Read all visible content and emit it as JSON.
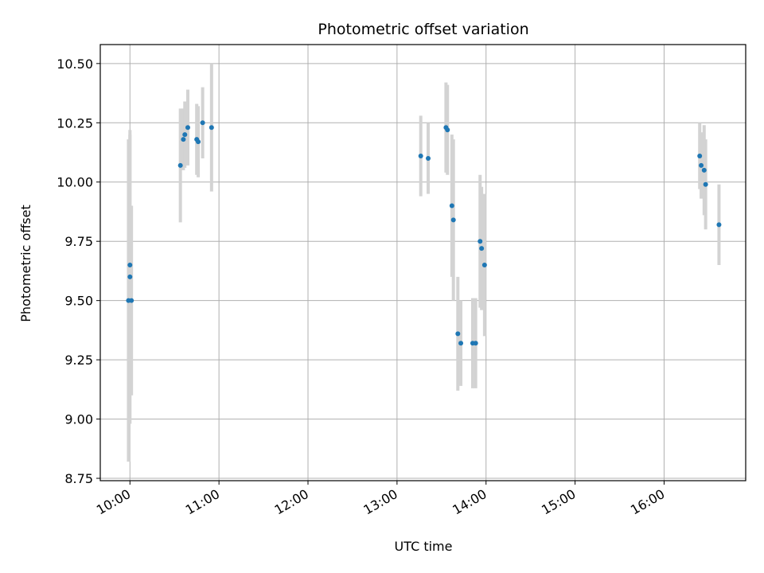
{
  "chart_data": {
    "type": "scatter",
    "title": "Photometric offset variation",
    "xlabel": "UTC time",
    "ylabel": "Photometric offset",
    "xlim": [
      "09:40",
      "16:55"
    ],
    "ylim": [
      8.74,
      10.58
    ],
    "x_ticks": [
      "10:00",
      "11:00",
      "12:00",
      "13:00",
      "14:00",
      "15:00",
      "16:00"
    ],
    "y_ticks": [
      "8.75",
      "9.00",
      "9.25",
      "9.50",
      "9.75",
      "10.00",
      "10.25",
      "10.50"
    ],
    "grid": true,
    "colors": {
      "point": "#1f77b4",
      "errorbar": "#d3d3d3",
      "grid": "#b0b0b0"
    },
    "points": [
      {
        "x": "09:59",
        "y": 9.5,
        "err": 0.68
      },
      {
        "x": "10:00",
        "y": 9.6,
        "err": 0.62
      },
      {
        "x": "10:00",
        "y": 9.65,
        "err": 0.55
      },
      {
        "x": "10:01",
        "y": 9.5,
        "err": 0.4
      },
      {
        "x": "10:34",
        "y": 10.07,
        "err": 0.24
      },
      {
        "x": "10:36",
        "y": 10.18,
        "err": 0.13
      },
      {
        "x": "10:37",
        "y": 10.2,
        "err": 0.14
      },
      {
        "x": "10:39",
        "y": 10.23,
        "err": 0.16
      },
      {
        "x": "10:45",
        "y": 10.18,
        "err": 0.15
      },
      {
        "x": "10:46",
        "y": 10.17,
        "err": 0.15
      },
      {
        "x": "10:49",
        "y": 10.25,
        "err": 0.15
      },
      {
        "x": "10:55",
        "y": 10.23,
        "err": 0.27
      },
      {
        "x": "13:16",
        "y": 10.11,
        "err": 0.17
      },
      {
        "x": "13:21",
        "y": 10.1,
        "err": 0.15
      },
      {
        "x": "13:33",
        "y": 10.23,
        "err": 0.19
      },
      {
        "x": "13:34",
        "y": 10.22,
        "err": 0.19
      },
      {
        "x": "13:37",
        "y": 9.9,
        "err": 0.3
      },
      {
        "x": "13:38",
        "y": 9.84,
        "err": 0.34
      },
      {
        "x": "13:41",
        "y": 9.36,
        "err": 0.24
      },
      {
        "x": "13:43",
        "y": 9.32,
        "err": 0.18
      },
      {
        "x": "13:51",
        "y": 9.32,
        "err": 0.19
      },
      {
        "x": "13:53",
        "y": 9.32,
        "err": 0.19
      },
      {
        "x": "13:56",
        "y": 9.75,
        "err": 0.28
      },
      {
        "x": "13:57",
        "y": 9.72,
        "err": 0.26
      },
      {
        "x": "13:59",
        "y": 9.65,
        "err": 0.3
      },
      {
        "x": "16:24",
        "y": 10.11,
        "err": 0.14
      },
      {
        "x": "16:25",
        "y": 10.07,
        "err": 0.14
      },
      {
        "x": "16:27",
        "y": 10.05,
        "err": 0.19
      },
      {
        "x": "16:28",
        "y": 9.99,
        "err": 0.19
      },
      {
        "x": "16:37",
        "y": 9.82,
        "err": 0.17
      }
    ]
  }
}
